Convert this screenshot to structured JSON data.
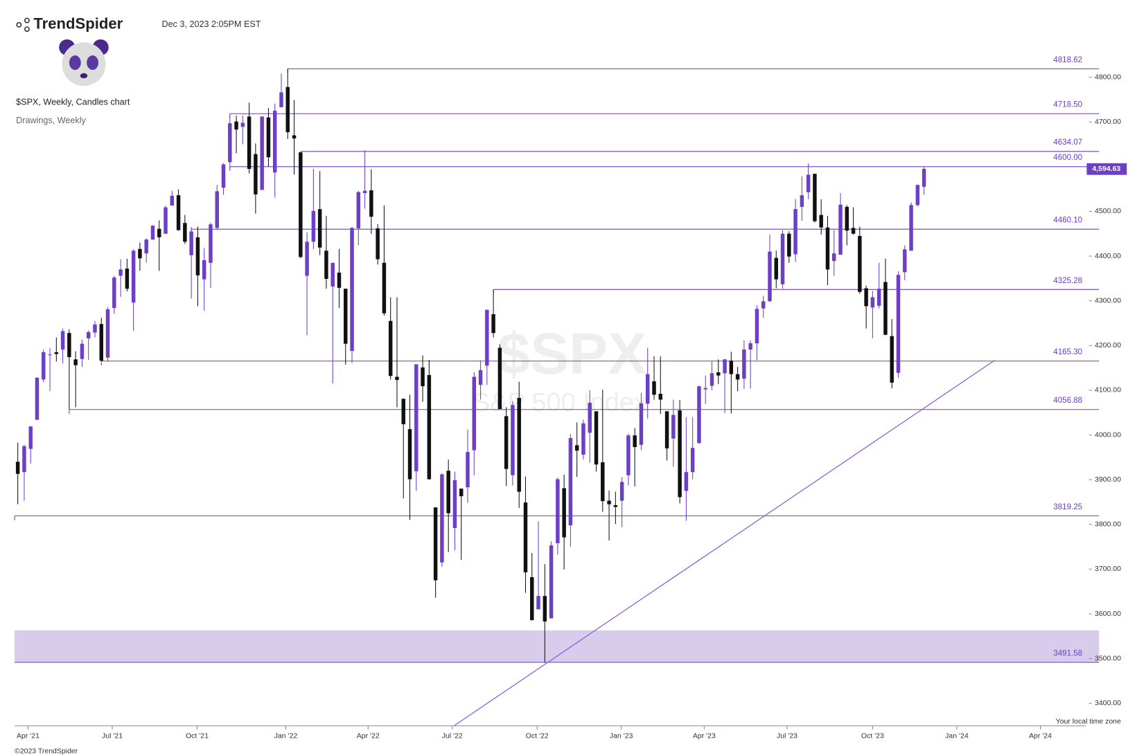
{
  "header": {
    "brand": "TrendSpider",
    "timestamp": "Dec 3, 2023 2:05PM EST",
    "chart_info": "$SPX, Weekly, Candles chart",
    "drawings_info": "Drawings, Weekly"
  },
  "chart_data": {
    "type": "candlestick",
    "watermark": "$SPX",
    "watermark_subtitle": "S&P 500 Index",
    "up_color": "#6c3fc4",
    "down_color": "#111111",
    "level_color": "#6a3fc0",
    "zone_color": "#d8ccec",
    "candles": [
      [
        3940,
        3983,
        3845,
        3913
      ],
      [
        3917,
        3978,
        3853,
        3975
      ],
      [
        3969,
        4020,
        3936,
        4019
      ],
      [
        4034,
        4129,
        4034,
        4128
      ],
      [
        4124,
        4191,
        4118,
        4185
      ],
      [
        4179,
        4194,
        4098,
        4180
      ],
      [
        4185,
        4218,
        4164,
        4181
      ],
      [
        4191,
        4238,
        4160,
        4232
      ],
      [
        4228,
        4236,
        4057,
        4174
      ],
      [
        4169,
        4187,
        4062,
        4156
      ],
      [
        4170,
        4213,
        4152,
        4204
      ],
      [
        4216,
        4234,
        4168,
        4230
      ],
      [
        4229,
        4255,
        4218,
        4247
      ],
      [
        4248,
        4262,
        4165,
        4166
      ],
      [
        4173,
        4286,
        4164,
        4281
      ],
      [
        4284,
        4356,
        4271,
        4352
      ],
      [
        4356,
        4393,
        4309,
        4370
      ],
      [
        4372,
        4394,
        4321,
        4327
      ],
      [
        4296,
        4415,
        4233,
        4412
      ],
      [
        4416,
        4430,
        4367,
        4395
      ],
      [
        4406,
        4440,
        4385,
        4437
      ],
      [
        4437,
        4469,
        4436,
        4468
      ],
      [
        4461,
        4480,
        4367,
        4442
      ],
      [
        4450,
        4513,
        4450,
        4509
      ],
      [
        4513,
        4546,
        4513,
        4535
      ],
      [
        4536,
        4549,
        4457,
        4458
      ],
      [
        4474,
        4492,
        4427,
        4432
      ],
      [
        4402,
        4465,
        4305,
        4455
      ],
      [
        4442,
        4466,
        4288,
        4357
      ],
      [
        4348,
        4418,
        4278,
        4391
      ],
      [
        4385,
        4475,
        4329,
        4471
      ],
      [
        4463,
        4559,
        4459,
        4545
      ],
      [
        4553,
        4608,
        4537,
        4605
      ],
      [
        4610,
        4718,
        4595,
        4697
      ],
      [
        4701,
        4714,
        4630,
        4683
      ],
      [
        4689,
        4714,
        4650,
        4698
      ],
      [
        4712,
        4743,
        4585,
        4595
      ],
      [
        4628,
        4652,
        4495,
        4538
      ],
      [
        4548,
        4713,
        4548,
        4712
      ],
      [
        4710,
        4731,
        4600,
        4621
      ],
      [
        4587,
        4741,
        4531,
        4725
      ],
      [
        4733,
        4808,
        4733,
        4766
      ],
      [
        4778,
        4819,
        4662,
        4677
      ],
      [
        4670,
        4749,
        4582,
        4663
      ],
      [
        4632,
        4632,
        4395,
        4398
      ],
      [
        4356,
        4453,
        4223,
        4432
      ],
      [
        4432,
        4595,
        4415,
        4501
      ],
      [
        4505,
        4590,
        4402,
        4419
      ],
      [
        4412,
        4490,
        4327,
        4349
      ],
      [
        4332,
        4385,
        4115,
        4385
      ],
      [
        4363,
        4416,
        4284,
        4329
      ],
      [
        4327,
        4327,
        4157,
        4204
      ],
      [
        4188,
        4465,
        4161,
        4463
      ],
      [
        4462,
        4546,
        4424,
        4543
      ],
      [
        4541,
        4637,
        4506,
        4546
      ],
      [
        4547,
        4594,
        4450,
        4488
      ],
      [
        4462,
        4471,
        4381,
        4393
      ],
      [
        4385,
        4513,
        4267,
        4272
      ],
      [
        4255,
        4308,
        4124,
        4132
      ],
      [
        4130,
        4308,
        4062,
        4123
      ],
      [
        4081,
        4081,
        3858,
        4024
      ],
      [
        4013,
        4090,
        3810,
        3901
      ],
      [
        3919,
        4158,
        3875,
        4158
      ],
      [
        4151,
        4178,
        4074,
        4109
      ],
      [
        4134,
        4168,
        3900,
        3901
      ],
      [
        3838,
        3838,
        3636,
        3675
      ],
      [
        3715,
        3914,
        3705,
        3912
      ],
      [
        3920,
        3945,
        3738,
        3825
      ],
      [
        3792,
        3918,
        3742,
        3899
      ],
      [
        3880,
        3880,
        3721,
        3863
      ],
      [
        3883,
        4012,
        3848,
        3962
      ],
      [
        3966,
        4140,
        3910,
        4130
      ],
      [
        4112,
        4167,
        4079,
        4145
      ],
      [
        4155,
        4280,
        4112,
        4280
      ],
      [
        4270,
        4325,
        4218,
        4228
      ],
      [
        4195,
        4203,
        4058,
        4058
      ],
      [
        4042,
        4062,
        3886,
        3924
      ],
      [
        3910,
        4076,
        3887,
        4067
      ],
      [
        4083,
        4119,
        3837,
        3873
      ],
      [
        3849,
        3907,
        3647,
        3693
      ],
      [
        3682,
        3736,
        3585,
        3586
      ],
      [
        3610,
        3807,
        3611,
        3640
      ],
      [
        3640,
        3711,
        3491,
        3583
      ],
      [
        3590,
        3762,
        3590,
        3753
      ],
      [
        3758,
        3905,
        3732,
        3901
      ],
      [
        3881,
        3911,
        3699,
        3771
      ],
      [
        3798,
        4002,
        3750,
        3993
      ],
      [
        3977,
        4028,
        3906,
        3965
      ],
      [
        3956,
        4034,
        3945,
        4026
      ],
      [
        4005,
        4100,
        3938,
        4072
      ],
      [
        4053,
        4053,
        3918,
        3934
      ],
      [
        3939,
        4101,
        3828,
        3852
      ],
      [
        3853,
        3876,
        3764,
        3845
      ],
      [
        3843,
        3873,
        3801,
        3839
      ],
      [
        3853,
        3906,
        3794,
        3895
      ],
      [
        3910,
        4003,
        3887,
        3999
      ],
      [
        3999,
        4015,
        3885,
        3973
      ],
      [
        3978,
        4094,
        3966,
        4071
      ],
      [
        4070,
        4195,
        4037,
        4136
      ],
      [
        4120,
        4176,
        4079,
        4090
      ],
      [
        4092,
        4176,
        4047,
        4079
      ],
      [
        4053,
        4053,
        3943,
        3970
      ],
      [
        3992,
        4079,
        3929,
        4045
      ],
      [
        4055,
        4078,
        3847,
        3861
      ],
      [
        3875,
        4040,
        3808,
        3917
      ],
      [
        3917,
        4040,
        3901,
        3971
      ],
      [
        3982,
        4110,
        3980,
        4109
      ],
      [
        4102,
        4133,
        4069,
        4105
      ],
      [
        4110,
        4164,
        4100,
        4138
      ],
      [
        4140,
        4169,
        4114,
        4133
      ],
      [
        4138,
        4170,
        4049,
        4169
      ],
      [
        4166,
        4186,
        4048,
        4136
      ],
      [
        4136,
        4152,
        4098,
        4124
      ],
      [
        4126,
        4212,
        4103,
        4191
      ],
      [
        4191,
        4212,
        4104,
        4205
      ],
      [
        4205,
        4290,
        4167,
        4282
      ],
      [
        4283,
        4311,
        4262,
        4299
      ],
      [
        4299,
        4448,
        4298,
        4410
      ],
      [
        4396,
        4412,
        4328,
        4348
      ],
      [
        4337,
        4458,
        4327,
        4450
      ],
      [
        4450,
        4456,
        4385,
        4399
      ],
      [
        4404,
        4528,
        4387,
        4505
      ],
      [
        4510,
        4578,
        4479,
        4536
      ],
      [
        4543,
        4607,
        4527,
        4582
      ],
      [
        4584,
        4584,
        4475,
        4478
      ],
      [
        4492,
        4527,
        4448,
        4464
      ],
      [
        4464,
        4490,
        4335,
        4370
      ],
      [
        4389,
        4458,
        4356,
        4406
      ],
      [
        4403,
        4541,
        4403,
        4515
      ],
      [
        4510,
        4514,
        4424,
        4457
      ],
      [
        4463,
        4509,
        4448,
        4450
      ],
      [
        4445,
        4466,
        4316,
        4320
      ],
      [
        4328,
        4334,
        4238,
        4288
      ],
      [
        4285,
        4322,
        4216,
        4308
      ],
      [
        4289,
        4385,
        4283,
        4327
      ],
      [
        4342,
        4394,
        4223,
        4224
      ],
      [
        4221,
        4259,
        4104,
        4117
      ],
      [
        4139,
        4366,
        4128,
        4358
      ],
      [
        4364,
        4424,
        4346,
        4415
      ],
      [
        4412,
        4520,
        4412,
        4514
      ],
      [
        4514,
        4560,
        4511,
        4559
      ],
      [
        4555,
        4599,
        4537,
        4595
      ]
    ],
    "xlim": [
      -0.5,
      166.2
    ],
    "xticks": [
      {
        "value": 1.6,
        "label": "Apr '21"
      },
      {
        "value": 14.7,
        "label": "Jul '21"
      },
      {
        "value": 27.9,
        "label": "Oct '21"
      },
      {
        "value": 41.7,
        "label": "Jan '22"
      },
      {
        "value": 54.5,
        "label": "Apr '22"
      },
      {
        "value": 67.6,
        "label": "Jul '22"
      },
      {
        "value": 80.8,
        "label": "Oct '22"
      },
      {
        "value": 93.9,
        "label": "Jan '23"
      },
      {
        "value": 106.8,
        "label": "Apr '23"
      },
      {
        "value": 119.7,
        "label": "Jul '23"
      },
      {
        "value": 133.0,
        "label": "Oct '23"
      },
      {
        "value": 146.1,
        "label": "Jan '24"
      },
      {
        "value": 159.1,
        "label": "Apr '24"
      }
    ],
    "ylim": [
      3349.6,
      4907.4
    ],
    "yticks": [
      {
        "value": 3400,
        "label": "3400.00"
      },
      {
        "value": 3500,
        "label": "3500.00"
      },
      {
        "value": 3600,
        "label": "3600.00"
      },
      {
        "value": 3700,
        "label": "3700.00"
      },
      {
        "value": 3800,
        "label": "3800.00"
      },
      {
        "value": 3900,
        "label": "3900.00"
      },
      {
        "value": 4000,
        "label": "4000.00"
      },
      {
        "value": 4100,
        "label": "4100.00"
      },
      {
        "value": 4200,
        "label": "4200.00"
      },
      {
        "value": 4300,
        "label": "4300.00"
      },
      {
        "value": 4400,
        "label": "4400.00"
      },
      {
        "value": 4500,
        "label": "4500.00"
      },
      {
        "value": 4600,
        "label": "4600.00"
      },
      {
        "value": 4700,
        "label": "4700.00"
      },
      {
        "value": 4800,
        "label": "4800.00"
      }
    ],
    "levels": [
      {
        "value": 4818.62,
        "label": "4818.62",
        "start": 42
      },
      {
        "value": 4718.5,
        "label": "4718.50",
        "start": 33
      },
      {
        "value": 4634.07,
        "label": "4634.07",
        "start": 44
      },
      {
        "value": 4600,
        "label": "4600.00",
        "start": 33
      },
      {
        "value": 4460.1,
        "label": "4460.10",
        "start": 27
      },
      {
        "value": 4325.28,
        "label": "4325.28",
        "start": 74
      },
      {
        "value": 4165.3,
        "label": "4165.30",
        "start": 13
      },
      {
        "value": 4056.88,
        "label": "4056.88",
        "start": 8
      },
      {
        "value": 3819.25,
        "label": "3819.25",
        "start": -0.5
      }
    ],
    "zone": {
      "low": 3491.58,
      "high": 3563,
      "label": "3491.58",
      "start": -0.5
    },
    "trendline": {
      "x": [
        67.9,
        152
      ],
      "y": [
        3350,
        4167
      ]
    },
    "last_price": {
      "value": 4594.63,
      "label": "4,594.63"
    },
    "timezone_note": "Your local time zone"
  },
  "footer": {
    "copyright": "©2023 TrendSpider"
  }
}
